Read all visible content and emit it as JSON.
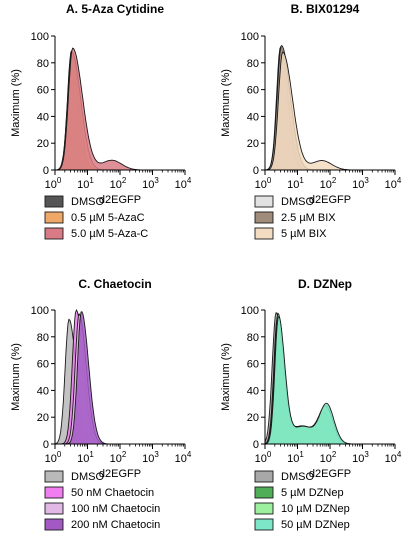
{
  "chart_data": [
    {
      "type": "area",
      "title": "A. 5-Aza Cytidine",
      "xlabel": "d2EGFP",
      "ylabel": "Maximum (%)",
      "xscale": "log",
      "xlim": [
        1,
        10000
      ],
      "ylim": [
        0,
        100
      ],
      "yticks": [
        "0",
        "20",
        "40",
        "60",
        "80",
        "100"
      ],
      "xticks": [
        "1",
        "1",
        "2",
        "3",
        "4"
      ],
      "series": [
        {
          "name": "DMSO",
          "color": "#555555",
          "peak_x": 3.2,
          "peak_y": 89,
          "profile": "unimodal"
        },
        {
          "name": "0.5 µM 5-AzaC",
          "color": "#f0a868",
          "peak_x": 3.3,
          "peak_y": 88,
          "profile": "unimodal_wide"
        },
        {
          "name": "5.0 µM 5-Aza-C",
          "color": "#d97b86",
          "peak_x": 3.5,
          "peak_y": 91,
          "profile": "unimodal_wide_tail"
        }
      ]
    },
    {
      "type": "area",
      "title": "B. BIX01294",
      "xlabel": "d2EGFP",
      "ylabel": "Maximum (%)",
      "xscale": "log",
      "xlim": [
        1,
        10000
      ],
      "ylim": [
        0,
        100
      ],
      "yticks": [
        "0",
        "20",
        "40",
        "60",
        "80",
        "100"
      ],
      "xticks": [
        "1",
        "1",
        "2",
        "3",
        "4"
      ],
      "series": [
        {
          "name": "DMSO",
          "color": "#e2e2e2",
          "peak_x": 3.0,
          "peak_y": 92,
          "profile": "unimodal"
        },
        {
          "name": "2.5 µM BIX",
          "color": "#a08c7a",
          "peak_x": 3.2,
          "peak_y": 93,
          "profile": "unimodal_wide"
        },
        {
          "name": "5 µM BIX",
          "color": "#f3dcc1",
          "peak_x": 3.5,
          "peak_y": 88,
          "profile": "unimodal_wide_tail"
        }
      ]
    },
    {
      "type": "area",
      "title": "C. Chaetocin",
      "xlabel": "d2EGFP",
      "ylabel": "Maximum (%)",
      "xscale": "log",
      "xlim": [
        1,
        10000
      ],
      "ylim": [
        0,
        100
      ],
      "yticks": [
        "0",
        "20",
        "40",
        "60",
        "80",
        "100"
      ],
      "xticks": [
        "1",
        "1",
        "2",
        "3",
        "4"
      ],
      "series": [
        {
          "name": "DMSO",
          "color": "#b9b9b9",
          "peak_x": 2.7,
          "peak_y": 93,
          "profile": "unimodal"
        },
        {
          "name": "50 nM Chaetocin",
          "color": "#f07ef0",
          "peak_x": 4.5,
          "peak_y": 100,
          "profile": "unimodal"
        },
        {
          "name": "100 nM Chaetocin",
          "color": "#e2b9e6",
          "peak_x": 5.5,
          "peak_y": 97,
          "profile": "unimodal"
        },
        {
          "name": "200 nM Chaetocin",
          "color": "#a259c4",
          "peak_x": 6.5,
          "peak_y": 99,
          "profile": "unimodal"
        }
      ]
    },
    {
      "type": "area",
      "title": "D. DZNep",
      "xlabel": "d2EGFP",
      "ylabel": "Maximum (%)",
      "xscale": "log",
      "xlim": [
        1,
        10000
      ],
      "ylim": [
        0,
        100
      ],
      "yticks": [
        "0",
        "20",
        "40",
        "60",
        "80",
        "100"
      ],
      "xticks": [
        "1",
        "1",
        "2",
        "3",
        "4"
      ],
      "series": [
        {
          "name": "DMSO",
          "color": "#a8a8a8",
          "peak_x": 2.2,
          "peak_y": 98,
          "profile": "unimodal"
        },
        {
          "name": "5 µM DZNep",
          "color": "#4fae57",
          "peak_x": 2.4,
          "peak_y": 93,
          "second_peak_x": 70,
          "second_peak_y": 22,
          "profile": "bimodal"
        },
        {
          "name": "10 µM DZNep",
          "color": "#9df09d",
          "peak_x": 2.5,
          "peak_y": 96,
          "second_peak_x": 75,
          "second_peak_y": 27,
          "profile": "bimodal"
        },
        {
          "name": "50 µM DZNep",
          "color": "#7ee6c8",
          "peak_x": 2.6,
          "peak_y": 94,
          "second_peak_x": 80,
          "second_peak_y": 29,
          "profile": "bimodal"
        }
      ]
    }
  ]
}
